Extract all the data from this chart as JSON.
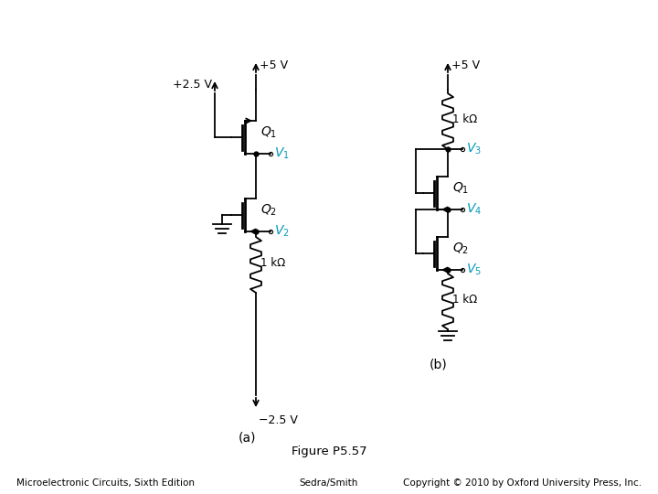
{
  "title": "Figure P5.57",
  "footer_left": "Microelectronic Circuits, Sixth Edition",
  "footer_center": "Sedra/Smith",
  "footer_right": "Copyright © 2010 by Oxford University Press, Inc.",
  "label_a": "(a)",
  "label_b": "(b)",
  "cyan_color": "#0099BB",
  "black_color": "#000000",
  "bg_color": "#ffffff"
}
